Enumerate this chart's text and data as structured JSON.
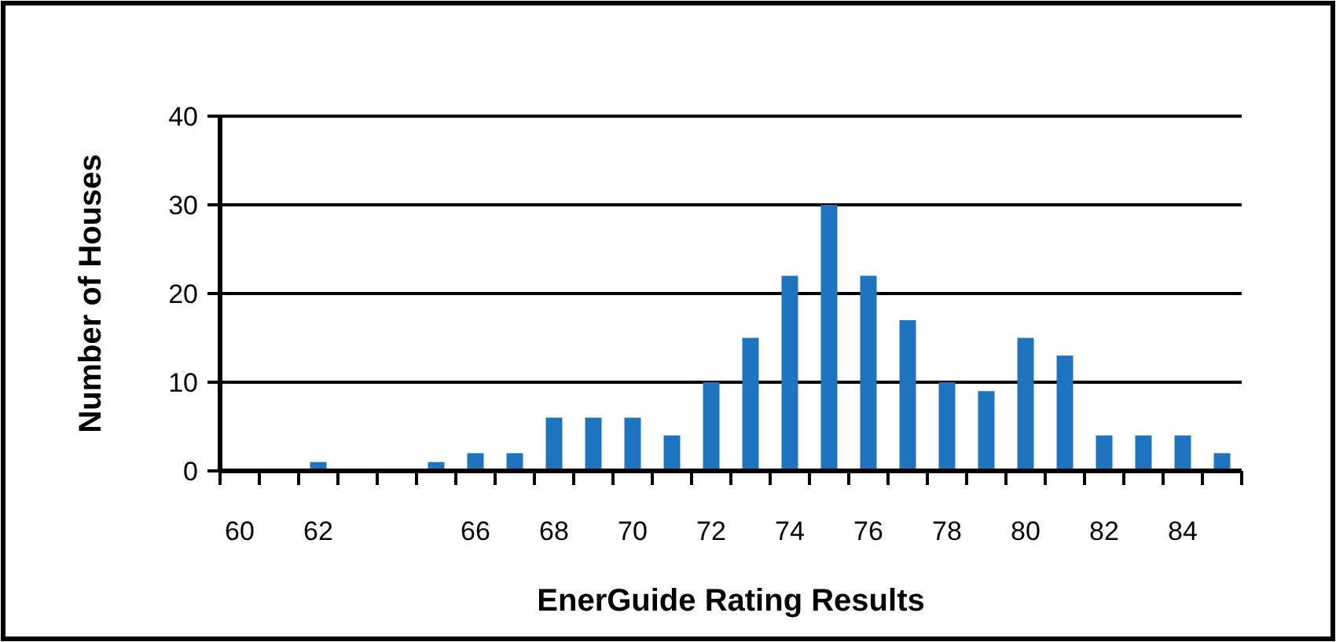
{
  "chart_data": {
    "type": "bar",
    "xlabel": "EnerGuide Rating Results",
    "ylabel": "Number of Houses",
    "categories": [
      "60",
      null,
      "62",
      null,
      null,
      null,
      "66",
      null,
      "68",
      null,
      "70",
      null,
      "72",
      null,
      "74",
      null,
      "76",
      null,
      "78",
      null,
      "80",
      null,
      "82",
      null,
      "84",
      null
    ],
    "values": [
      0,
      0,
      1,
      0,
      0,
      1,
      2,
      2,
      6,
      6,
      6,
      4,
      10,
      15,
      22,
      30,
      22,
      17,
      10,
      9,
      15,
      13,
      4,
      4,
      4,
      2
    ],
    "color": "#1f74bf",
    "ylim": [
      0,
      40
    ],
    "yticks": [
      0,
      10,
      20,
      30,
      40
    ],
    "grid": "y"
  }
}
